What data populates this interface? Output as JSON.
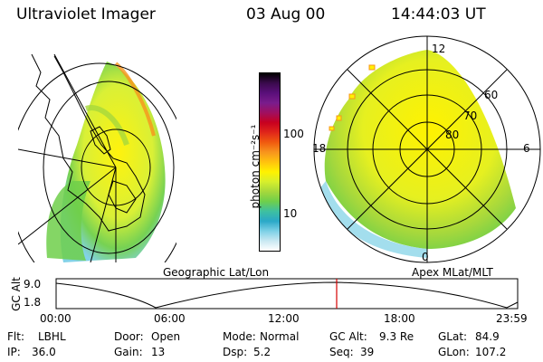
{
  "header": {
    "instrument": "Ultraviolet Imager",
    "date": "03 Aug 00",
    "time": "14:44:03 UT"
  },
  "left_panel": {
    "label": "Geographic Lat/Lon"
  },
  "colorbar": {
    "unit_label": "photon cm⁻²s⁻¹",
    "ticks": [
      "100",
      "10"
    ],
    "colors": [
      "#000000",
      "#3b0a4d",
      "#5a0f7a",
      "#7a1c8c",
      "#a01060",
      "#c8001f",
      "#e0261a",
      "#f05a0f",
      "#f7941d",
      "#ffc20e",
      "#fff200",
      "#d7ef2c",
      "#a6d83c",
      "#6fcf4a",
      "#3ec0a0",
      "#2aa8c8",
      "#7cd0e6",
      "#c8e8f2",
      "#ffffff"
    ]
  },
  "right_panel": {
    "label": "Apex MLat/MLT",
    "mlt_labels": [
      "12",
      "18",
      "6",
      "0"
    ],
    "lat_labels": [
      "60",
      "70",
      "80"
    ]
  },
  "timeline": {
    "axis_label": "GC Alt",
    "y_ticks": [
      "9.0",
      "1.8"
    ],
    "x_ticks": [
      "00:00",
      "06:00",
      "12:00",
      "18:00",
      "23:59"
    ],
    "current_marker_color": "#d40000"
  },
  "footer": {
    "rows": [
      [
        {
          "key": "Flt:",
          "val": "LBHL"
        },
        {
          "key": "Door:",
          "val": "Open"
        },
        {
          "key": "Mode:",
          "val": "Normal"
        },
        {
          "key": "GC Alt:",
          "val": "9.3 Re"
        },
        {
          "key": "GLat:",
          "val": "84.9"
        }
      ],
      [
        {
          "key": "IP:",
          "val": "36.0"
        },
        {
          "key": "Gain:",
          "val": "13"
        },
        {
          "key": "Dsp:",
          "val": "5.2"
        },
        {
          "key": "Seq:",
          "val": "39"
        },
        {
          "key": "GLon:",
          "val": "107.2"
        }
      ]
    ]
  }
}
